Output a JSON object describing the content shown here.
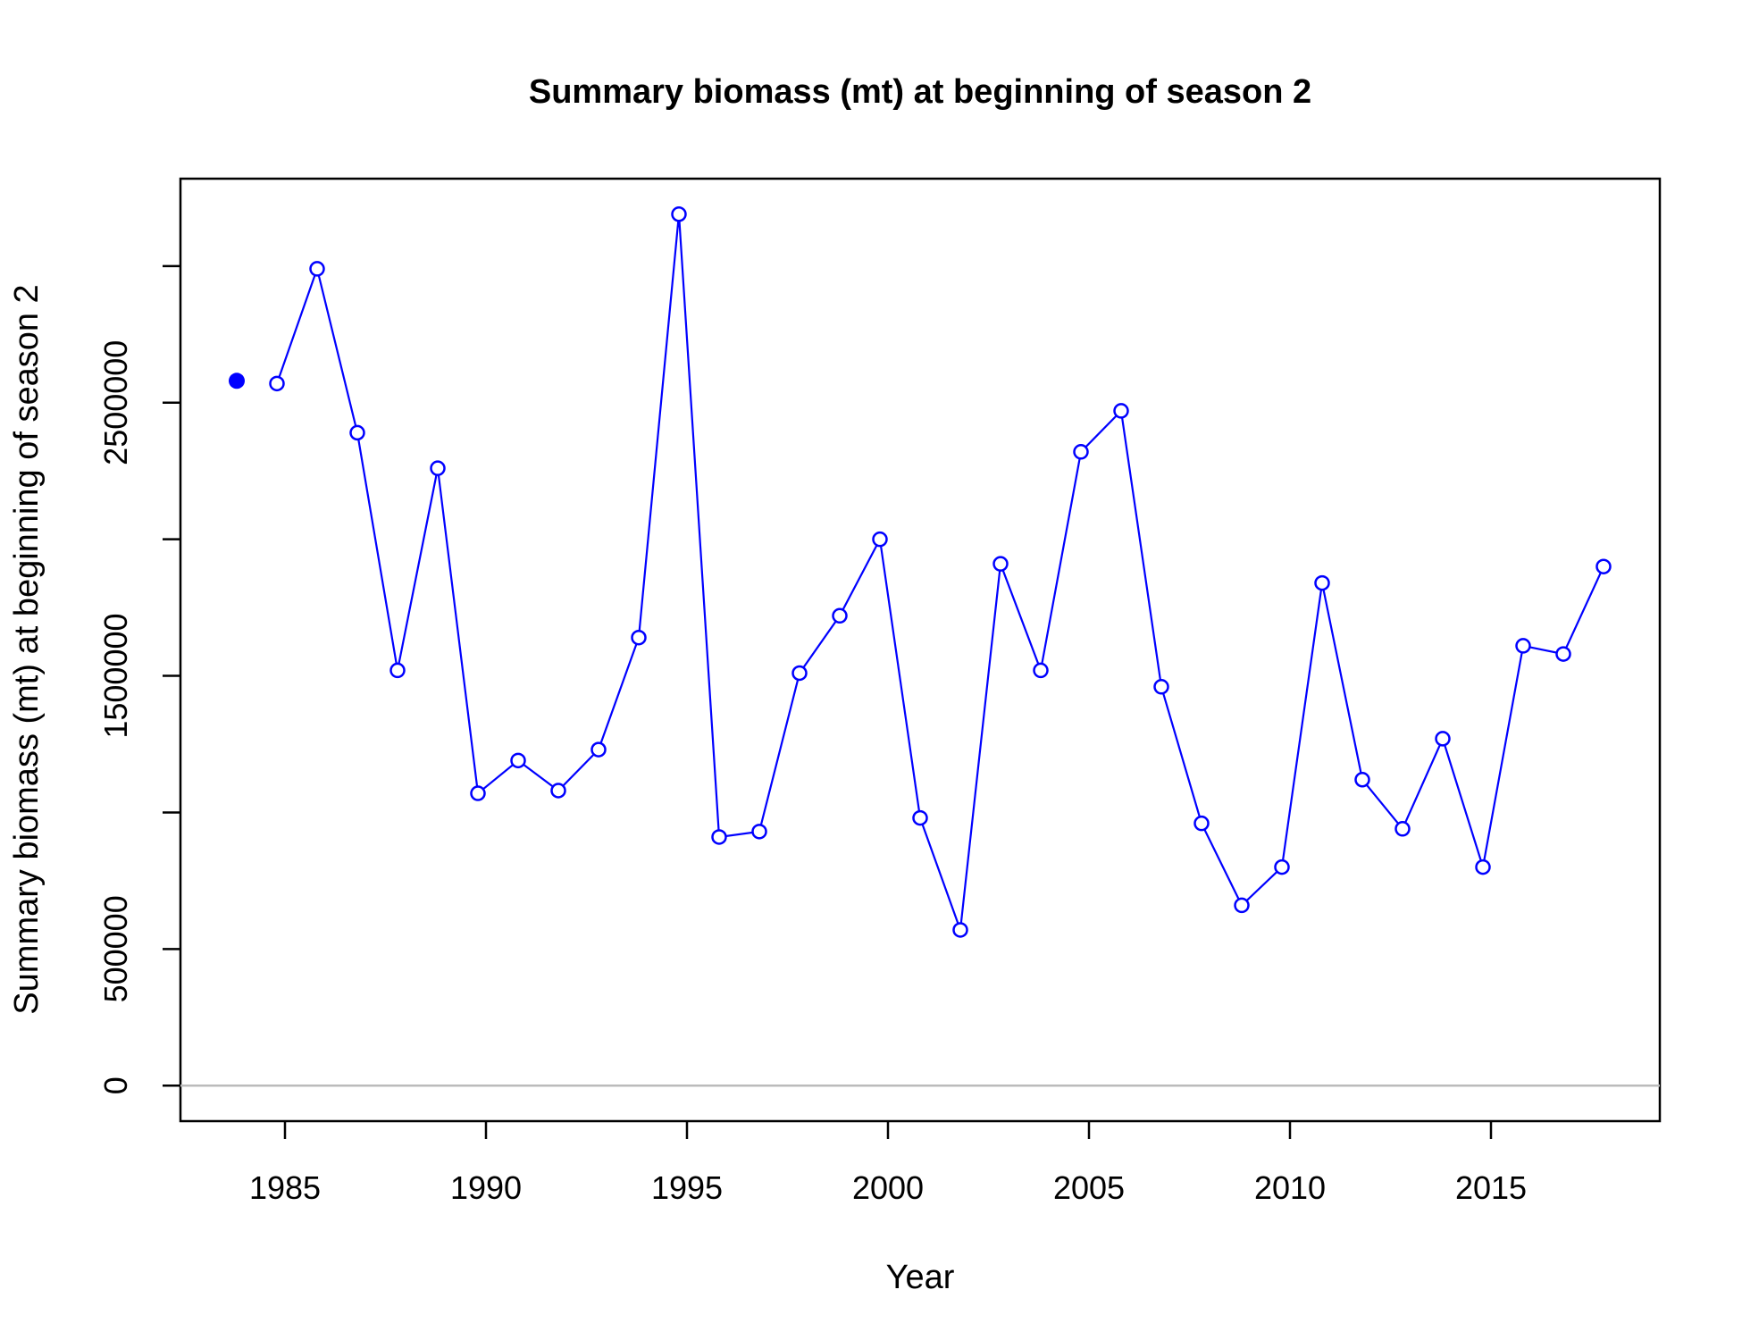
{
  "chart_data": {
    "type": "line",
    "title": "Summary biomass (mt) at beginning of season 2",
    "xlabel": "Year",
    "ylabel": "Summary biomass (mt) at beginning of season 2",
    "xlim": [
      1982.4,
      2019.2
    ],
    "ylim": [
      -130000,
      3320000
    ],
    "x_ticks": [
      1985,
      1990,
      1995,
      2000,
      2005,
      2010,
      2015
    ],
    "y_ticks": [
      0,
      500000,
      1000000,
      1500000,
      2000000,
      2500000,
      3000000
    ],
    "y_tick_labels": [
      "0",
      "500000",
      "",
      "1500000",
      "",
      "2500000",
      ""
    ],
    "reference_line": 0,
    "virgin_point": {
      "x": 1983.8,
      "y": 2580000
    },
    "series": [
      {
        "color": "#0000ff",
        "x": [
          1984.8,
          1985.8,
          1986.8,
          1987.8,
          1988.8,
          1989.8,
          1990.8,
          1991.8,
          1992.8,
          1993.8,
          1994.8,
          1995.8,
          1996.8,
          1997.8,
          1998.8,
          1999.8,
          2000.8,
          2001.8,
          2002.8,
          2003.8,
          2004.8,
          2005.8,
          2006.8,
          2007.8,
          2008.8,
          2009.8,
          2010.8,
          2011.8,
          2012.8,
          2013.8,
          2014.8,
          2015.8,
          2016.8,
          2017.8
        ],
        "y": [
          2570000,
          2990000,
          2390000,
          1520000,
          2260000,
          1070000,
          1190000,
          1080000,
          1230000,
          1640000,
          3190000,
          910000,
          930000,
          1510000,
          1720000,
          2000000,
          980000,
          570000,
          1910000,
          1520000,
          2320000,
          2470000,
          1460000,
          960000,
          660000,
          800000,
          1840000,
          1120000,
          940000,
          1270000,
          800000,
          1610000,
          1580000,
          1900000
        ]
      }
    ]
  }
}
